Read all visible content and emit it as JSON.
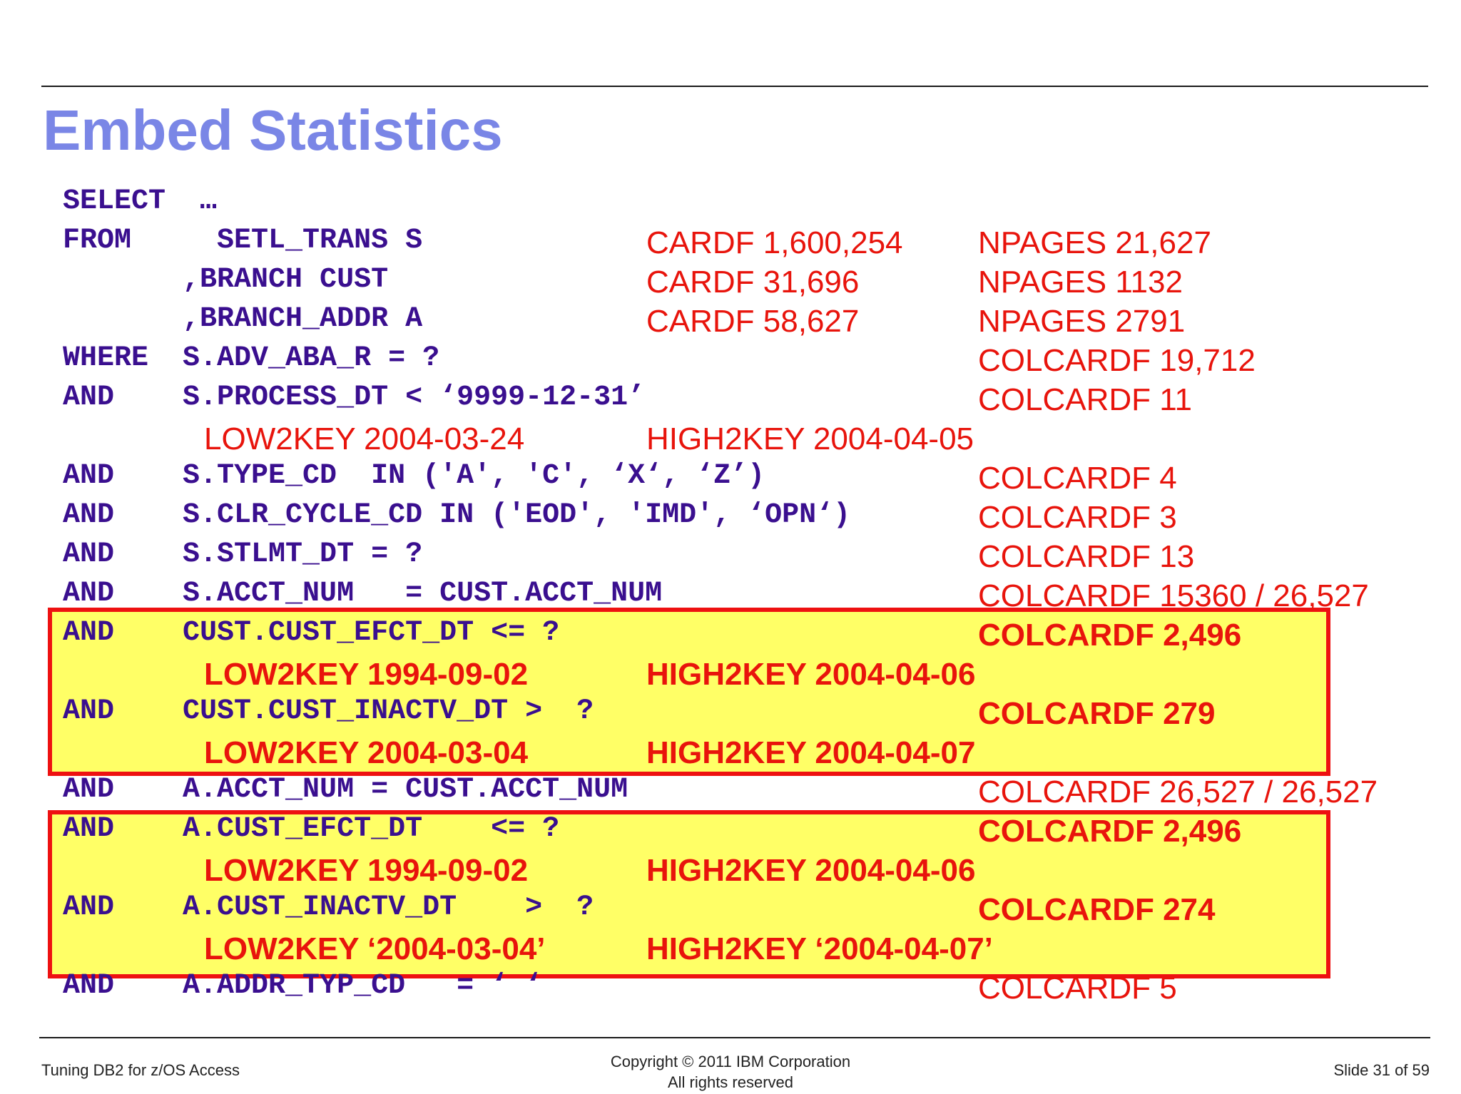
{
  "title": "Embed Statistics",
  "code_lines": [
    "SELECT  …",
    "FROM     SETL_TRANS S",
    "       ,BRANCH CUST",
    "       ,BRANCH_ADDR A",
    "WHERE  S.ADV_ABA_R = ?",
    "AND    S.PROCESS_DT < ‘9999-12-31’",
    "AND    S.TYPE_CD  IN ('A', 'C', ‘X‘, ‘Z’)",
    "AND    S.CLR_CYCLE_CD IN ('EOD', 'IMD', ‘OPN‘)",
    "AND    S.STLMT_DT = ?",
    "AND    S.ACCT_NUM   = CUST.ACCT_NUM",
    "AND    CUST.CUST_EFCT_DT <= ?",
    "AND    CUST.CUST_INACTV_DT >  ?",
    "AND    A.ACCT_NUM = CUST.ACCT_NUM",
    "AND    A.CUST_EFCT_DT    <= ?",
    "AND    A.CUST_INACTV_DT    >  ?",
    "AND    A.ADDR_TYP_CD   = ‘ ‘"
  ],
  "stats": {
    "cardf_setl": "CARDF 1,600,254",
    "npages_setl": "NPAGES 21,627",
    "cardf_cust": "CARDF 31,696",
    "npages_cust": "NPAGES 1132",
    "cardf_addr": "CARDF 58,627",
    "npages_addr": "NPAGES 2791",
    "colcard_adv_aba": "COLCARDF 19,712",
    "colcard_process_dt": "COLCARDF 11",
    "low2key_process_dt": "LOW2KEY 2004-03-24",
    "high2key_process_dt": "HIGH2KEY 2004-04-05",
    "colcard_type_cd": "COLCARDF 4",
    "colcard_clr_cycle": "COLCARDF 3",
    "colcard_stlmt_dt": "COLCARDF 13",
    "colcard_acct_num": "COLCARDF 15360 / 26,527",
    "colcard_cust_efct": "COLCARDF 2,496",
    "low2key_cust_efct": "LOW2KEY 1994-09-02",
    "high2key_cust_efct": "HIGH2KEY 2004-04-06",
    "colcard_cust_inactv": "COLCARDF 279",
    "low2key_cust_inactv": "LOW2KEY 2004-03-04",
    "high2key_cust_inactv": "HIGH2KEY 2004-04-07",
    "colcard_a_acct_num": "COLCARDF 26,527 / 26,527",
    "colcard_a_efct": "COLCARDF 2,496",
    "low2key_a_efct": "LOW2KEY 1994-09-02",
    "high2key_a_efct": "HIGH2KEY 2004-04-06",
    "colcard_a_inactv": "COLCARDF 274",
    "low2key_a_inactv": "LOW2KEY ‘2004-03-04’",
    "high2key_a_inactv": "HIGH2KEY ‘2004-04-07’",
    "colcard_addr_typ": "COLCARDF 5"
  },
  "footer": {
    "left": "Tuning DB2 for z/OS Access",
    "center_line1": "Copyright © 2011 IBM Corporation",
    "center_line2": "All rights reserved",
    "right": "Slide 31 of 59"
  },
  "colors": {
    "title": "#7a86e6",
    "code": "#3a0f8f",
    "stats": "#e8140c",
    "highlight_fill": "#ffff66",
    "highlight_border": "#ee1111"
  }
}
